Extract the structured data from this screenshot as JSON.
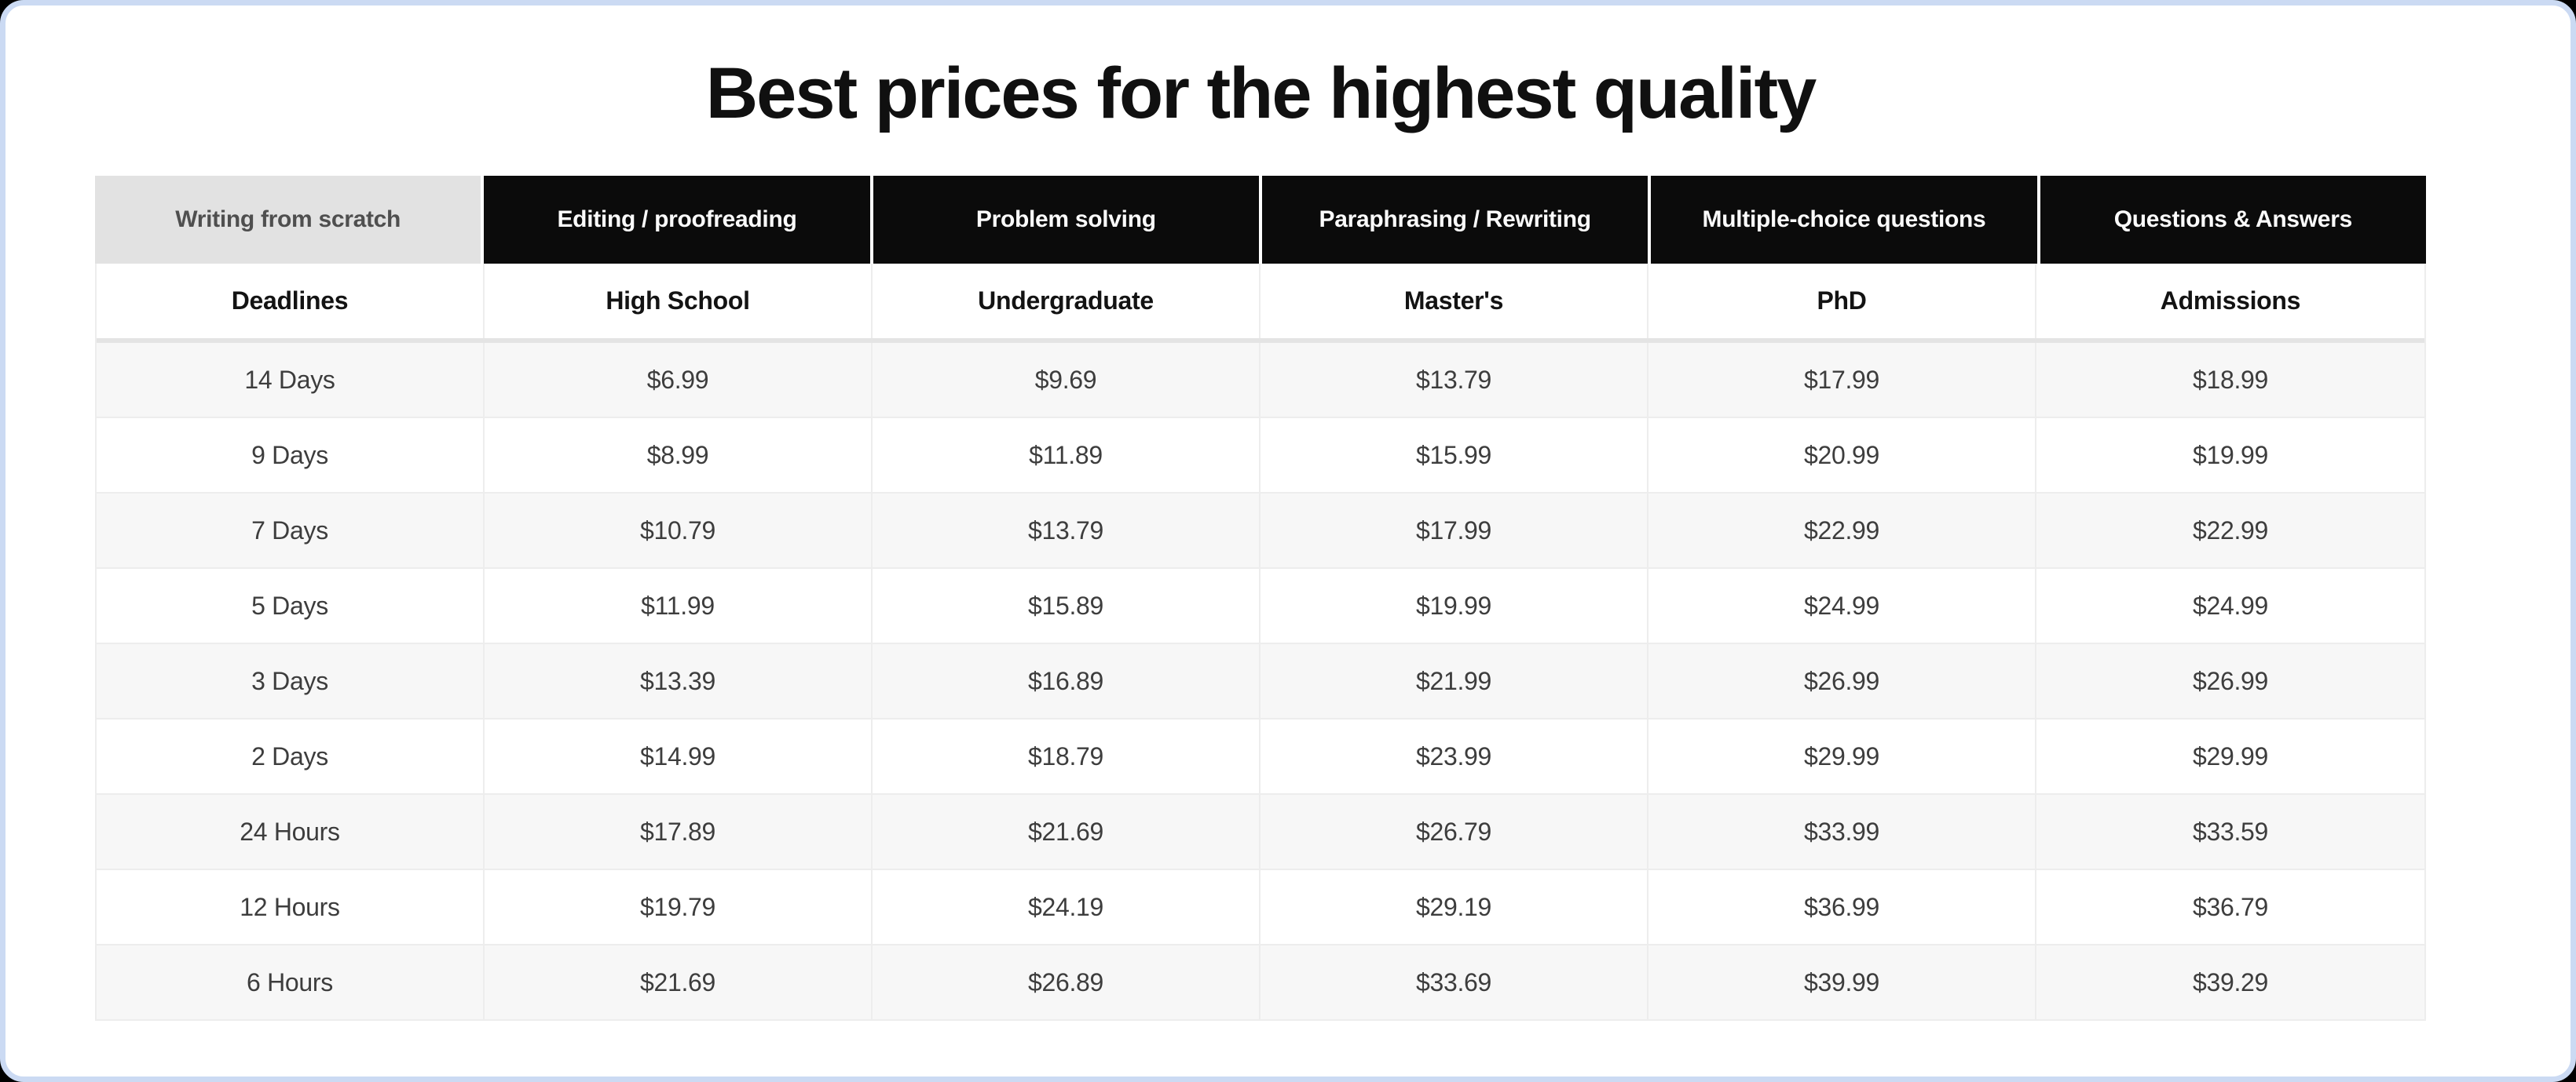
{
  "page": {
    "title": "Best prices for the highest quality"
  },
  "colors": {
    "page_background": "#000000",
    "card_background": "#ffffff",
    "card_border": "#cbdaf3",
    "tab_background": "#0b0b0b",
    "tab_text": "#fbfbfb",
    "tab_active_background": "#e2e2e2",
    "tab_active_text": "#4f4f4f",
    "row_alt_background": "#f7f7f7",
    "grid_line": "#ededed"
  },
  "tabs": [
    {
      "label": "Writing from scratch",
      "active": true
    },
    {
      "label": "Editing / proofreading",
      "active": false
    },
    {
      "label": "Problem solving",
      "active": false
    },
    {
      "label": "Paraphrasing / Rewriting",
      "active": false
    },
    {
      "label": "Multiple-choice questions",
      "active": false
    },
    {
      "label": "Questions & Answers",
      "active": false
    }
  ],
  "table": {
    "columns": [
      "Deadlines",
      "High School",
      "Undergraduate",
      "Master's",
      "PhD",
      "Admissions"
    ],
    "rows": [
      {
        "deadline": "14 Days",
        "prices": [
          "$6.99",
          "$9.69",
          "$13.79",
          "$17.99",
          "$18.99"
        ]
      },
      {
        "deadline": "9 Days",
        "prices": [
          "$8.99",
          "$11.89",
          "$15.99",
          "$20.99",
          "$19.99"
        ]
      },
      {
        "deadline": "7 Days",
        "prices": [
          "$10.79",
          "$13.79",
          "$17.99",
          "$22.99",
          "$22.99"
        ]
      },
      {
        "deadline": "5 Days",
        "prices": [
          "$11.99",
          "$15.89",
          "$19.99",
          "$24.99",
          "$24.99"
        ]
      },
      {
        "deadline": "3 Days",
        "prices": [
          "$13.39",
          "$16.89",
          "$21.99",
          "$26.99",
          "$26.99"
        ]
      },
      {
        "deadline": "2 Days",
        "prices": [
          "$14.99",
          "$18.79",
          "$23.99",
          "$29.99",
          "$29.99"
        ]
      },
      {
        "deadline": "24 Hours",
        "prices": [
          "$17.89",
          "$21.69",
          "$26.79",
          "$33.99",
          "$33.59"
        ]
      },
      {
        "deadline": "12 Hours",
        "prices": [
          "$19.79",
          "$24.19",
          "$29.19",
          "$36.99",
          "$36.79"
        ]
      },
      {
        "deadline": "6 Hours",
        "prices": [
          "$21.69",
          "$26.89",
          "$33.69",
          "$39.99",
          "$39.29"
        ]
      }
    ]
  }
}
